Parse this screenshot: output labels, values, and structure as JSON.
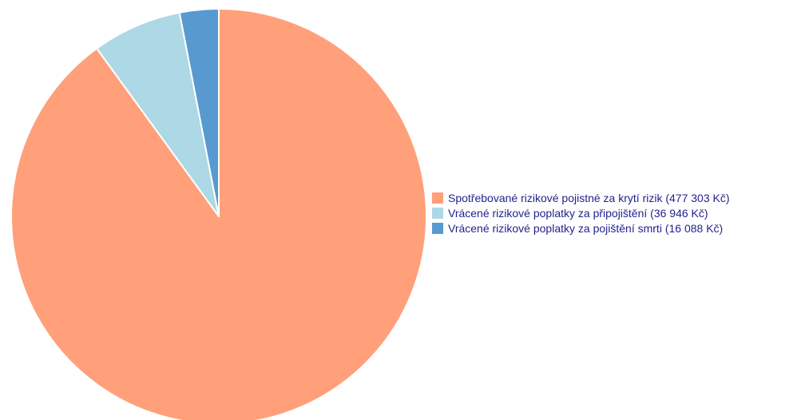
{
  "chart_data": {
    "type": "pie",
    "title": "",
    "series": [
      {
        "name": "Spotřebované rizikové pojistné za krytí rizik (477 303 Kč)",
        "value": 477303,
        "color": "#ffa07a"
      },
      {
        "name": "Vrácené rizikové poplatky za připojištění (36 946 Kč)",
        "value": 36946,
        "color": "#add8e6"
      },
      {
        "name": "Vrácené rizikové poplatky za pojištění smrti (16 088 Kč)",
        "value": 16088,
        "color": "#5899cf"
      }
    ],
    "start_angle": "top",
    "direction": "clockwise",
    "legend_position": "right"
  }
}
